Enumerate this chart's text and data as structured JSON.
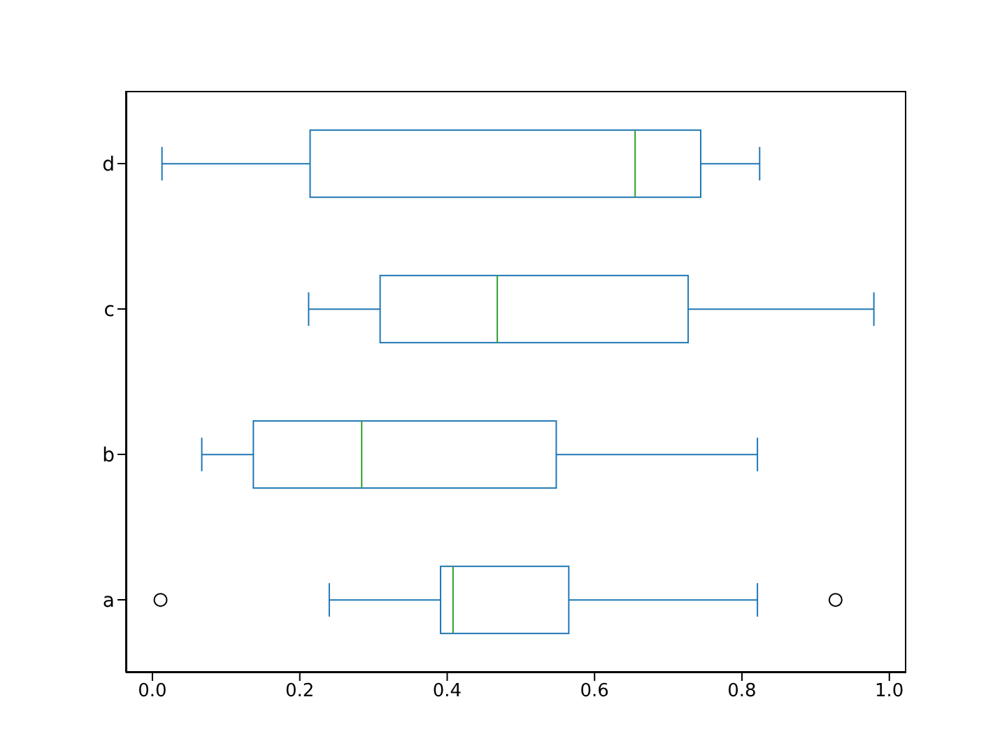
{
  "chart_data": {
    "type": "box",
    "orientation": "horizontal",
    "color": "#1f77b4",
    "categories": [
      "d",
      "c",
      "b",
      "a"
    ],
    "boxes": [
      {
        "low": 0.013,
        "q1": 0.214,
        "median": 0.655,
        "q3": 0.744,
        "high": 0.824
      },
      {
        "low": 0.212,
        "q1": 0.309,
        "median": 0.468,
        "q3": 0.727,
        "high": 0.979
      },
      {
        "low": 0.067,
        "q1": 0.137,
        "median": 0.284,
        "q3": 0.548,
        "high": 0.821
      },
      {
        "low": 0.24,
        "q1": 0.391,
        "median": 0.408,
        "q3": 0.565,
        "high": 0.821,
        "outliers": [
          0.011,
          0.927
        ]
      }
    ],
    "xlim": [
      -0.036,
      1.023
    ],
    "xticks": [
      {
        "value": 0,
        "label": "0.0"
      },
      {
        "value": 0.2,
        "label": "0.2"
      },
      {
        "value": 0.4,
        "label": "0.4"
      },
      {
        "value": 0.6,
        "label": "0.6"
      },
      {
        "value": 0.8,
        "label": "0.8"
      },
      {
        "value": 1,
        "label": "1.0"
      }
    ]
  }
}
